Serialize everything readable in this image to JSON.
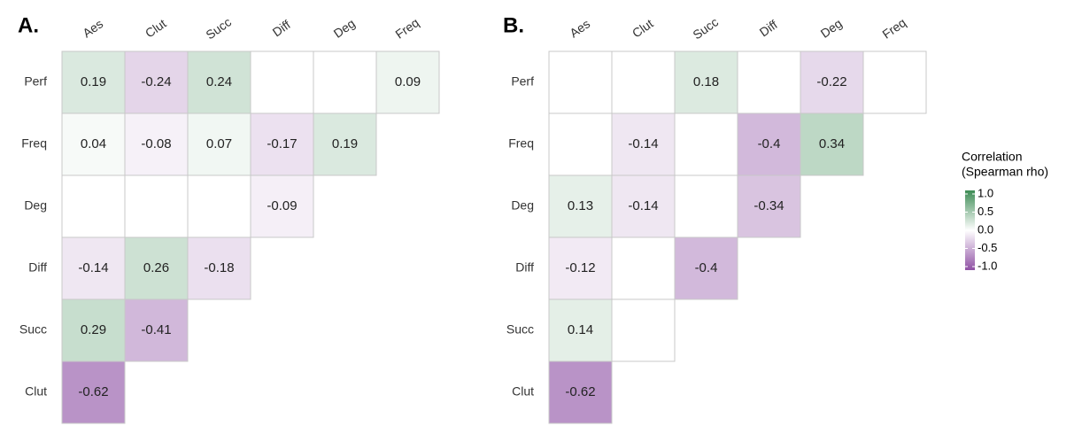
{
  "chart_data": [
    {
      "type": "heatmap",
      "title": "A.",
      "x": [
        "Aes",
        "Clut",
        "Succ",
        "Diff",
        "Deg",
        "Freq"
      ],
      "y": [
        "Perf",
        "Freq",
        "Deg",
        "Diff",
        "Succ",
        "Clut"
      ],
      "values": [
        [
          0.19,
          -0.24,
          0.24,
          null,
          null,
          0.09
        ],
        [
          0.04,
          -0.08,
          0.07,
          -0.17,
          0.19
        ],
        [
          null,
          null,
          null,
          -0.09
        ],
        [
          -0.14,
          0.26,
          -0.18
        ],
        [
          0.29,
          -0.41
        ],
        [
          -0.62
        ]
      ]
    },
    {
      "type": "heatmap",
      "title": "B.",
      "x": [
        "Aes",
        "Clut",
        "Succ",
        "Diff",
        "Deg",
        "Freq"
      ],
      "y": [
        "Perf",
        "Freq",
        "Deg",
        "Diff",
        "Succ",
        "Clut"
      ],
      "values": [
        [
          null,
          null,
          0.18,
          null,
          -0.22,
          null
        ],
        [
          null,
          -0.14,
          null,
          -0.4,
          0.34
        ],
        [
          0.13,
          -0.14,
          null,
          -0.34
        ],
        [
          -0.12,
          null,
          -0.4
        ],
        [
          0.14,
          null
        ],
        [
          -0.62
        ]
      ]
    }
  ],
  "colorbar": {
    "title": [
      "Correlation",
      "(Spearman rho)"
    ],
    "lim": [
      -1,
      1
    ],
    "ticks": [
      {
        "value": 1,
        "label": "1.0"
      },
      {
        "value": 0.5,
        "label": "0.5"
      },
      {
        "value": 0,
        "label": "0.0"
      },
      {
        "value": -0.5,
        "label": "-0.5"
      },
      {
        "value": -1,
        "label": "-1.0"
      }
    ],
    "colors": {
      "low": "#7b3294",
      "mid": "#ffffff",
      "high": "#1b7837"
    }
  }
}
